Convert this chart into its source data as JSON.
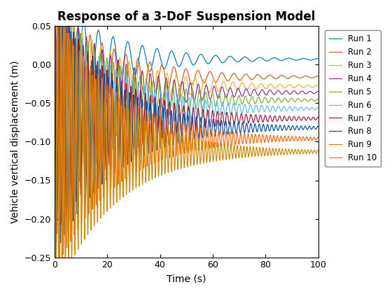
{
  "title": "Response of a 3-DoF Suspension Model",
  "xlabel": "Time (s)",
  "ylabel": "Vehicle vertical displacement (m)",
  "xlim": [
    0,
    100
  ],
  "ylim": [
    -0.25,
    0.05
  ],
  "yticks": [
    -0.25,
    -0.2,
    -0.15,
    -0.1,
    -0.05,
    0.0,
    0.05
  ],
  "xticks": [
    0,
    20,
    40,
    60,
    80,
    100
  ],
  "runs": [
    {
      "label": "Run 1",
      "color": "#0072BD",
      "steady": 0.007,
      "decay": 0.045,
      "freq": 0.18,
      "amp": 0.08,
      "phase": 0.0
    },
    {
      "label": "Run 2",
      "color": "#D95319",
      "steady": -0.016,
      "decay": 0.045,
      "freq": 0.22,
      "amp": 0.1,
      "phase": 0.2
    },
    {
      "label": "Run 3",
      "color": "#EDB120",
      "steady": -0.028,
      "decay": 0.045,
      "freq": 0.28,
      "amp": 0.115,
      "phase": 0.4
    },
    {
      "label": "Run 4",
      "color": "#7E2F8E",
      "steady": -0.036,
      "decay": 0.045,
      "freq": 0.33,
      "amp": 0.125,
      "phase": 0.1
    },
    {
      "label": "Run 5",
      "color": "#77AC30",
      "steady": -0.046,
      "decay": 0.045,
      "freq": 0.4,
      "amp": 0.135,
      "phase": 0.3
    },
    {
      "label": "Run 6",
      "color": "#4DBEEE",
      "steady": -0.057,
      "decay": 0.045,
      "freq": 0.47,
      "amp": 0.145,
      "phase": 0.5
    },
    {
      "label": "Run 7",
      "color": "#A2142F",
      "steady": -0.07,
      "decay": 0.045,
      "freq": 0.55,
      "amp": 0.155,
      "phase": 0.2
    },
    {
      "label": "Run 8",
      "color": "#0050AA",
      "steady": -0.082,
      "decay": 0.045,
      "freq": 0.63,
      "amp": 0.165,
      "phase": 0.6
    },
    {
      "label": "Run 9",
      "color": "#FF6600",
      "steady": -0.096,
      "decay": 0.045,
      "freq": 0.72,
      "amp": 0.175,
      "phase": 0.8
    },
    {
      "label": "Run 10",
      "color": "#CC8800",
      "steady": -0.113,
      "decay": 0.045,
      "freq": 0.82,
      "amp": 0.19,
      "phase": 0.9
    }
  ],
  "background_color": "#FFFFFF",
  "legend_fontsize": 8.5,
  "title_fontsize": 12,
  "linewidth": 0.85
}
